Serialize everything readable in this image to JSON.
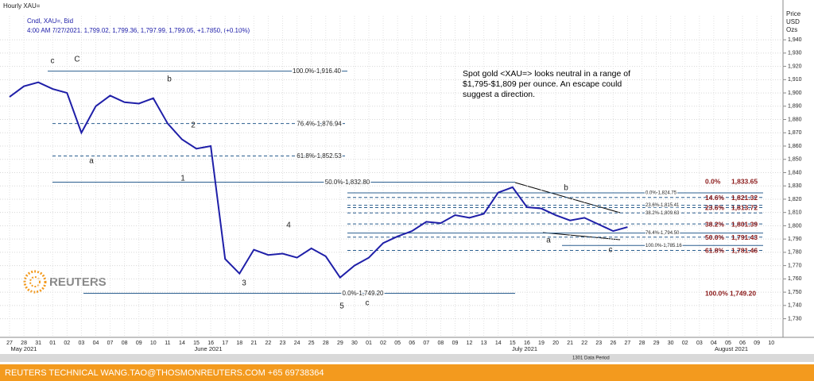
{
  "chart_data": {
    "type": "line",
    "title": "Hourly XAU=",
    "subtitle": "Cndl, XAU=, Bid",
    "quote": "4:00 AM 7/27/2021, 1,799.02, 1,799.36, 1,797.99, 1,799.05, +1.7850, (+0.10%)",
    "y_axis_label": [
      "Price",
      "USD",
      "Ozs"
    ],
    "categories": [
      "27",
      "28",
      "31",
      "01",
      "02",
      "03",
      "04",
      "07",
      "08",
      "09",
      "10",
      "11",
      "14",
      "15",
      "16",
      "17",
      "18",
      "21",
      "22",
      "23",
      "24",
      "25",
      "28",
      "29",
      "30",
      "01",
      "02",
      "05",
      "06",
      "07",
      "08",
      "09",
      "12",
      "13",
      "14",
      "15",
      "16",
      "19",
      "20",
      "21",
      "22",
      "23",
      "26",
      "27",
      "28",
      "29",
      "30",
      "02",
      "03",
      "04",
      "05",
      "06",
      "09",
      "10"
    ],
    "months": [
      "May 2021",
      "June 2021",
      "July 2021",
      "August 2021"
    ],
    "series": [
      {
        "name": "XAU=",
        "color": "#1f1fa8",
        "values": [
          1897,
          1905,
          1908,
          1903,
          1900,
          1870,
          1890,
          1898,
          1893,
          1892,
          1896,
          1877,
          1865,
          1858,
          1860,
          1775,
          1764,
          1782,
          1778,
          1779,
          1776,
          1783,
          1777,
          1761,
          1770,
          1776,
          1787,
          1792,
          1796,
          1803,
          1802,
          1808,
          1806,
          1809,
          1825,
          1829,
          1814,
          1813,
          1808,
          1804,
          1806,
          1801,
          1796,
          1799,
          null,
          null,
          null,
          null,
          null,
          null,
          null,
          null,
          null,
          null
        ]
      }
    ],
    "ylim": [
      1716,
      1958
    ],
    "yticks": [
      {
        "value": 1730,
        "label": "1,730"
      },
      {
        "value": 1740,
        "label": "1,740"
      },
      {
        "value": 1750,
        "label": "1,750"
      },
      {
        "value": 1760,
        "label": "1,760"
      },
      {
        "value": 1770,
        "label": "1,770"
      },
      {
        "value": 1780,
        "label": "1,780"
      },
      {
        "value": 1790,
        "label": "1,790"
      },
      {
        "value": 1800,
        "label": "1,800"
      },
      {
        "value": 1810,
        "label": "1,810"
      },
      {
        "value": 1820,
        "label": "1,820"
      },
      {
        "value": 1830,
        "label": "1,830"
      },
      {
        "value": 1840,
        "label": "1,840"
      },
      {
        "value": 1850,
        "label": "1,850"
      },
      {
        "value": 1860,
        "label": "1,860"
      },
      {
        "value": 1870,
        "label": "1,870"
      },
      {
        "value": 1880,
        "label": "1,880"
      },
      {
        "value": 1890,
        "label": "1,890"
      },
      {
        "value": 1900,
        "label": "1,900"
      },
      {
        "value": 1910,
        "label": "1,910"
      },
      {
        "value": 1920,
        "label": "1,920"
      },
      {
        "value": 1930,
        "label": "1,930"
      },
      {
        "value": 1940,
        "label": "1,940"
      }
    ],
    "grid": true,
    "fib_left": [
      {
        "label": "100.0%-1,916.40",
        "value": 1916.4
      },
      {
        "label": "76.4%-1,876.94",
        "value": 1876.94
      },
      {
        "label": "61.8%-1,852.53",
        "value": 1852.53
      },
      {
        "label": "50.0%-1,832.80",
        "value": 1832.8
      },
      {
        "label": "0.0%-1,749.20",
        "value": 1749.2
      }
    ],
    "fib_mid": [
      {
        "label": "0.0%-1,824.75",
        "value": 1824.75
      },
      {
        "label": "23.6%-1,815.41",
        "value": 1815.41
      },
      {
        "label": "38.2%-1,809.63",
        "value": 1809.63
      },
      {
        "label": "76.4%-1,794.50",
        "value": 1794.5
      },
      {
        "label": "100.0%-1,785.16",
        "value": 1785.16
      }
    ],
    "fib_right": [
      {
        "pct": "0.0%",
        "label": "1,833.65",
        "value": 1833.65
      },
      {
        "pct": "14.6%",
        "label": "1,821.32",
        "value": 1821.32
      },
      {
        "pct": "23.6%",
        "label": "1,813.72",
        "value": 1813.72
      },
      {
        "pct": "38.2%",
        "label": "1,801.39",
        "value": 1801.39
      },
      {
        "pct": "50.0%",
        "label": "1,791.43",
        "value": 1791.43
      },
      {
        "pct": "61.8%",
        "label": "1,781.46",
        "value": 1781.46
      },
      {
        "pct": "100.0%",
        "label": "1,749.20",
        "value": 1749.2
      }
    ],
    "wave_labels": [
      "c",
      "C",
      "b",
      "2",
      "a",
      "1",
      "4",
      "3",
      "5",
      "c",
      "b",
      "a",
      "c"
    ],
    "note_lines": [
      "Spot gold <XAU=> looks neutral in a range of",
      "$1,795-$1,809 per ounce. An escape could",
      "suggest a direction."
    ],
    "logo": "REUTERS",
    "period_label": "1301 Data Period",
    "footer": "REUTERS TECHNICAL  WANG.TAO@THOSMONREUTERS.COM  +65 69738364"
  }
}
